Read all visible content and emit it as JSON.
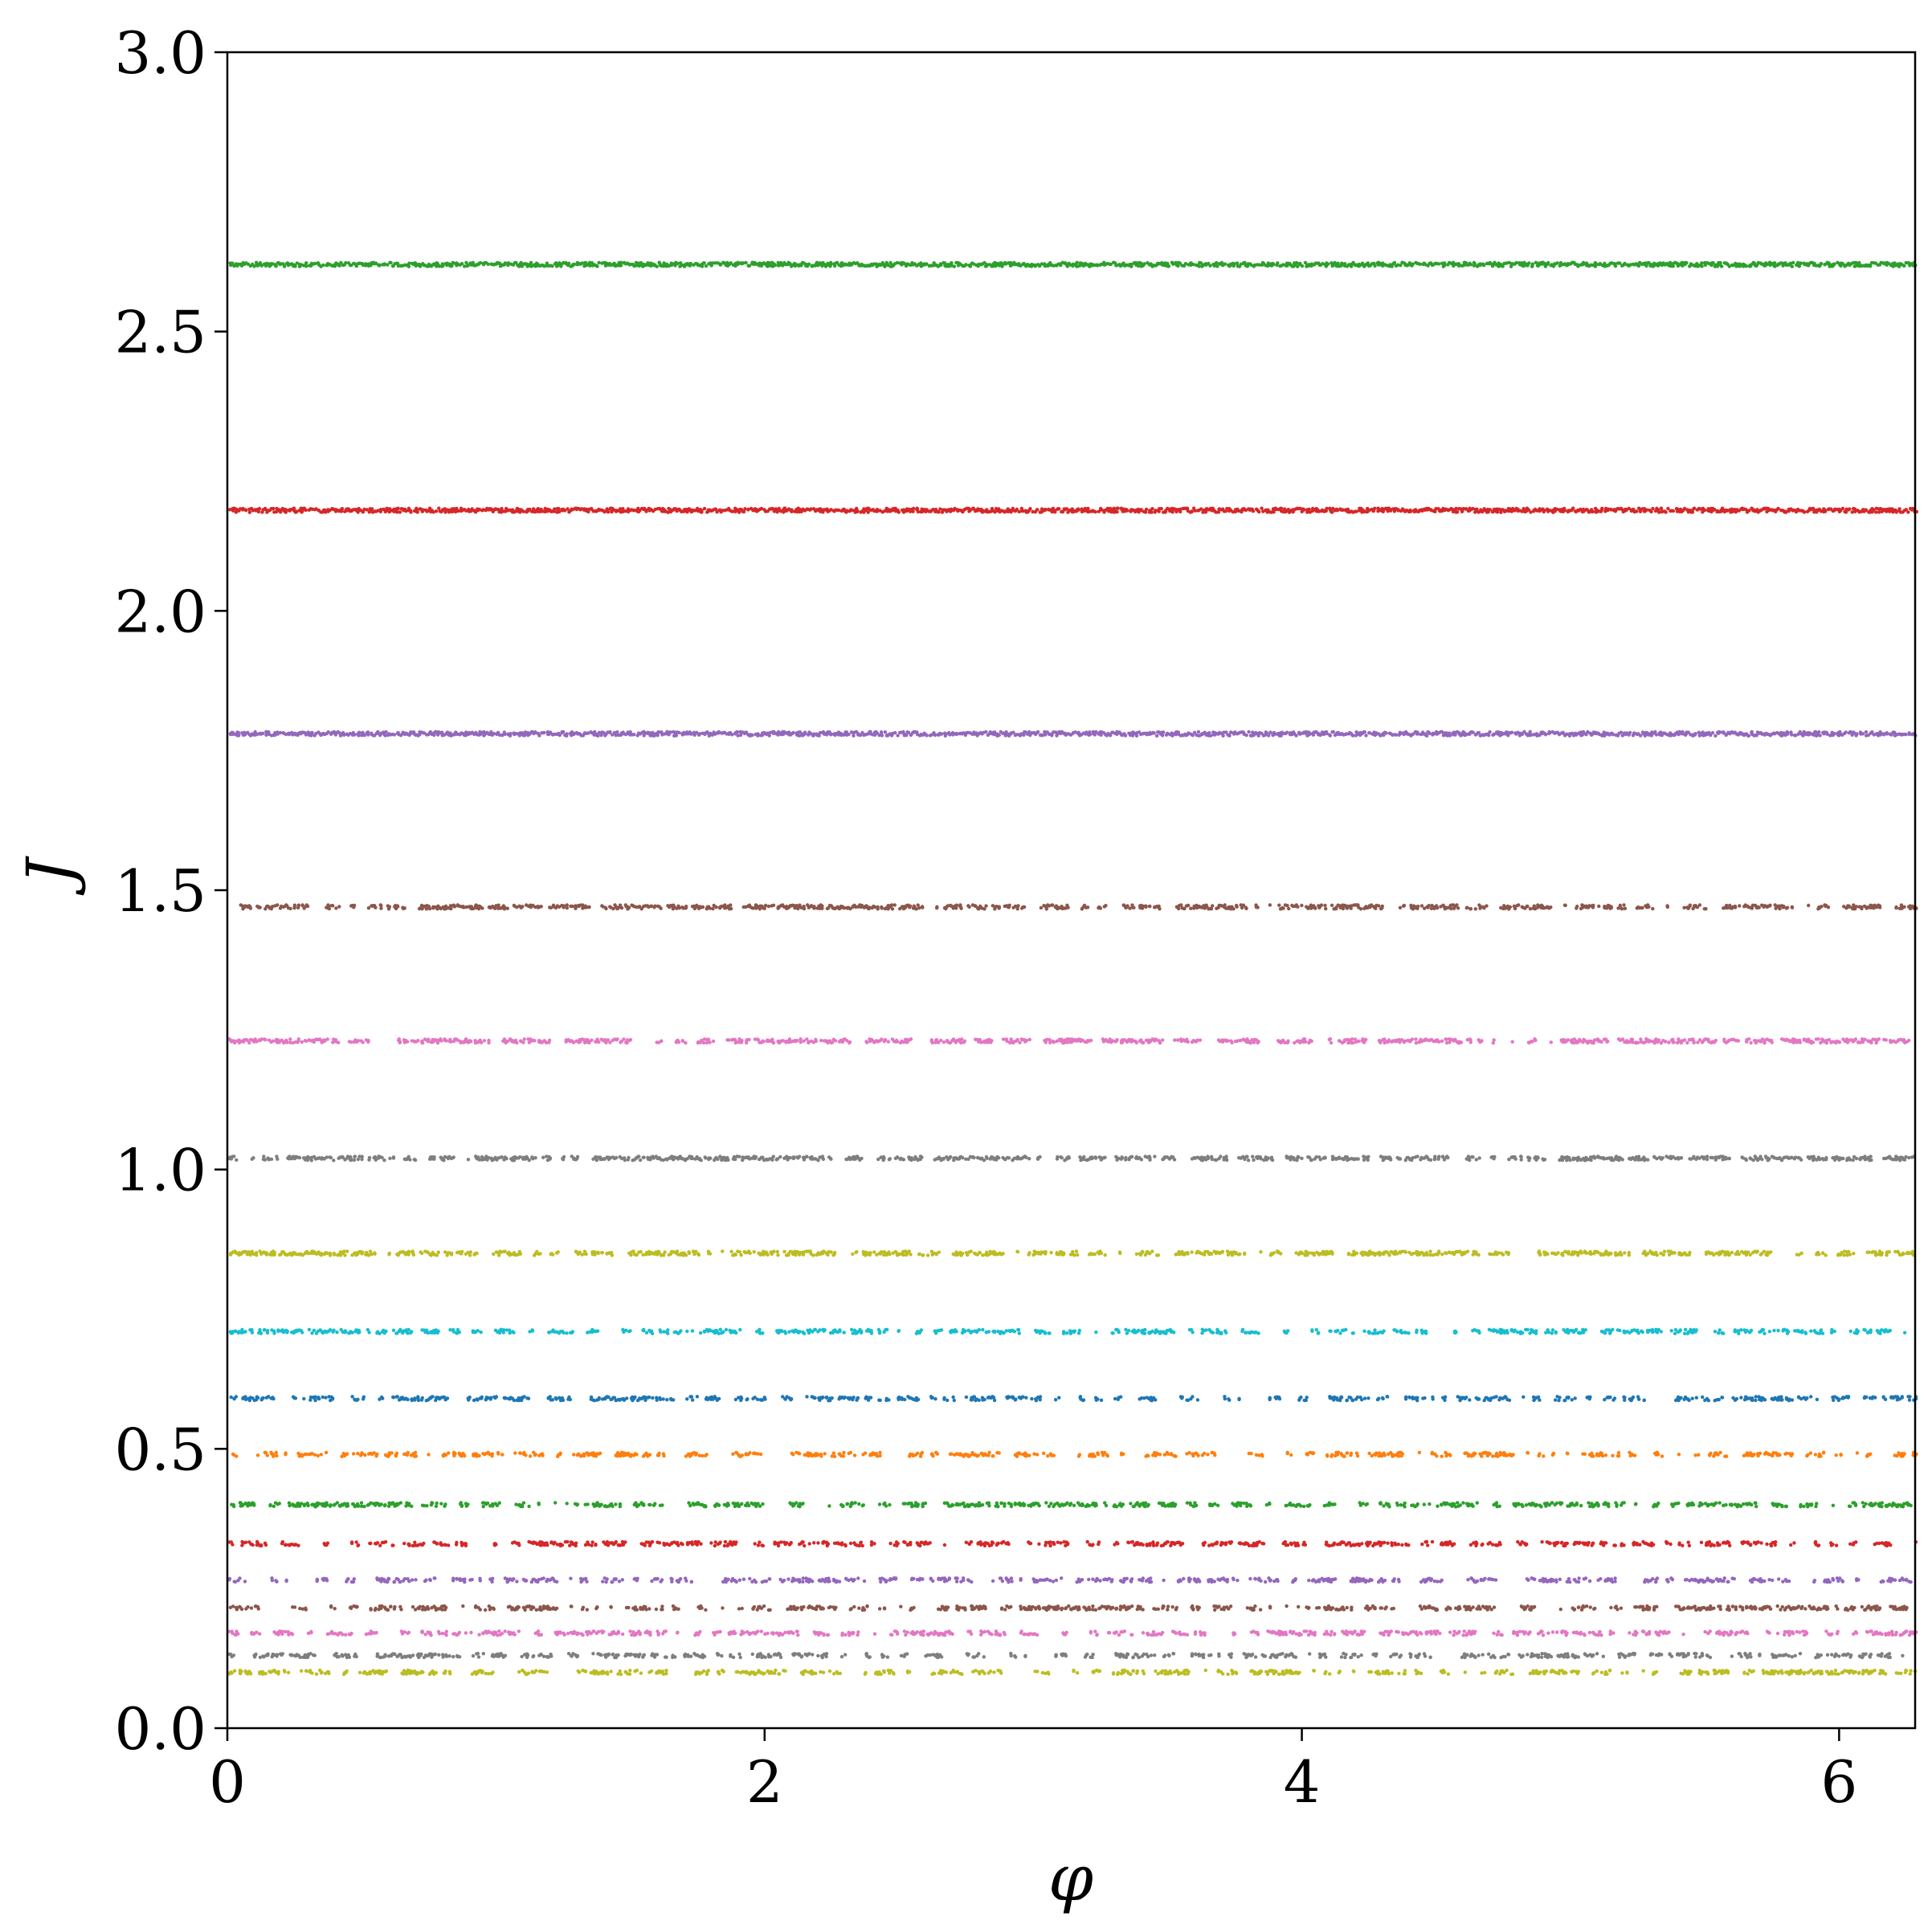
{
  "chart_data": {
    "type": "scatter",
    "title": "",
    "xlabel": "φ",
    "ylabel": "J",
    "xlim": [
      0,
      6.283
    ],
    "ylim": [
      0,
      3.0
    ],
    "xticks": [
      0,
      2,
      4,
      6
    ],
    "xtick_labels": [
      "0",
      "2",
      "4",
      "6"
    ],
    "yticks": [
      0.0,
      0.5,
      1.0,
      1.5,
      2.0,
      2.5,
      3.0
    ],
    "ytick_labels": [
      "0.0",
      "0.5",
      "1.0",
      "1.5",
      "2.0",
      "2.5",
      "3.0"
    ],
    "grid": false,
    "legend": "none",
    "series": [
      {
        "J": 2.62,
        "color": "#2ca02c"
      },
      {
        "J": 2.18,
        "color": "#d62728"
      },
      {
        "J": 1.78,
        "color": "#9467bd"
      },
      {
        "J": 1.47,
        "color": "#8c564b"
      },
      {
        "J": 1.23,
        "color": "#e377c2"
      },
      {
        "J": 1.02,
        "color": "#7f7f7f"
      },
      {
        "J": 0.85,
        "color": "#bcbd22"
      },
      {
        "J": 0.71,
        "color": "#17becf"
      },
      {
        "J": 0.59,
        "color": "#1f77b4"
      },
      {
        "J": 0.49,
        "color": "#ff7f0e"
      },
      {
        "J": 0.4,
        "color": "#2ca02c"
      },
      {
        "J": 0.33,
        "color": "#d62728"
      },
      {
        "J": 0.265,
        "color": "#9467bd"
      },
      {
        "J": 0.215,
        "color": "#8c564b"
      },
      {
        "J": 0.17,
        "color": "#e377c2"
      },
      {
        "J": 0.13,
        "color": "#7f7f7f"
      },
      {
        "J": 0.1,
        "color": "#bcbd22"
      }
    ]
  }
}
